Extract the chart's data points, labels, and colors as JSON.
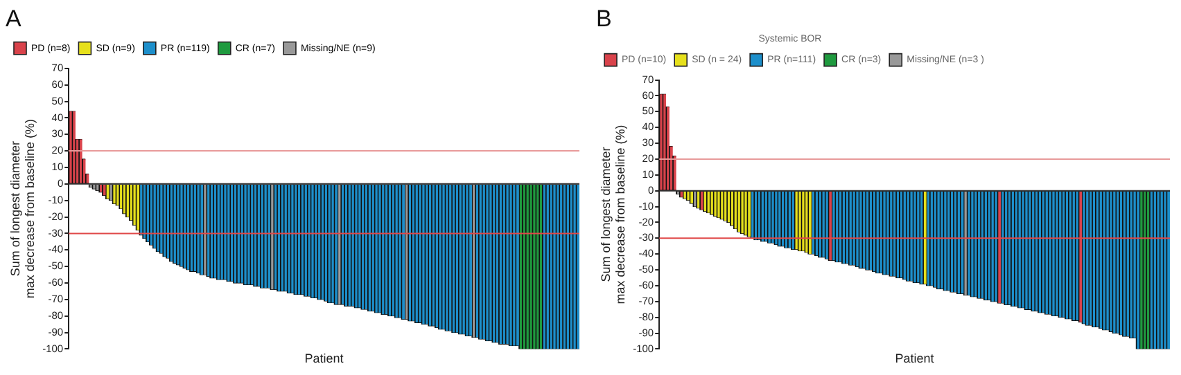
{
  "chart_data": [
    {
      "type": "bar",
      "title": "A",
      "xlabel": "Patient",
      "ylabel": "Sum of longest diameter\nmax decrease from baseline (%)",
      "stacked": true,
      "grid": false,
      "legend": "top",
      "ylim": [
        -100,
        70
      ],
      "yticks": [
        -100,
        -90,
        -80,
        -70,
        -60,
        -50,
        -40,
        -30,
        -20,
        -10,
        0,
        10,
        20,
        30,
        40,
        50,
        60,
        70
      ],
      "ref_lines": [
        {
          "axis": "y",
          "value": 20,
          "color": "#e89a9a"
        },
        {
          "axis": "y",
          "value": -30,
          "color": "#e04848"
        }
      ],
      "categories": [
        null,
        null,
        null,
        null,
        null,
        null,
        null,
        null,
        null,
        null,
        null,
        null,
        null,
        null,
        null,
        null,
        null,
        null,
        null,
        null,
        null,
        null,
        null,
        null,
        null,
        null,
        null,
        null,
        null,
        null,
        null,
        null,
        null,
        null,
        null,
        null,
        null,
        null,
        null,
        null,
        null,
        null,
        null,
        null,
        null,
        null,
        null,
        null,
        null,
        null,
        null,
        null,
        null,
        null,
        null,
        null,
        null,
        null,
        null,
        null,
        null,
        null,
        null,
        null,
        null,
        null,
        null,
        null,
        null,
        null,
        null,
        null,
        null,
        null,
        null,
        null,
        null,
        null,
        null,
        null,
        null,
        null,
        null,
        null,
        null,
        null,
        null,
        null,
        null,
        null,
        null,
        null,
        null,
        null,
        null,
        null,
        null,
        null,
        null,
        null,
        null,
        null,
        null,
        null,
        null,
        null,
        null,
        null,
        null,
        null,
        null,
        null,
        null,
        null,
        null,
        null,
        null,
        null,
        null,
        null,
        null,
        null,
        null,
        null,
        null,
        null,
        null,
        null,
        null,
        null,
        null,
        null,
        null,
        null,
        null,
        null,
        null,
        null,
        null,
        null,
        null,
        null,
        null,
        null,
        null,
        null,
        null,
        null,
        null,
        null,
        null,
        null
      ],
      "series": [
        {
          "name": "PD (n=8)",
          "color": "#d9434b",
          "values": [
            44,
            44,
            27,
            27,
            15,
            6,
            null,
            null,
            null,
            -5,
            -7,
            null,
            null,
            null,
            null,
            null,
            null,
            null,
            null,
            null,
            null,
            null,
            null,
            null,
            null,
            null,
            null,
            null,
            null,
            null,
            null,
            null,
            null,
            null,
            null,
            null,
            null,
            null,
            null,
            null,
            null,
            null,
            null,
            null,
            null,
            null,
            null,
            null,
            null,
            null,
            null,
            null,
            null,
            null,
            null,
            null,
            null,
            null,
            null,
            null,
            null,
            null,
            null,
            null,
            null,
            null,
            null,
            null,
            null,
            null,
            null,
            null,
            null,
            null,
            null,
            null,
            null,
            null,
            null,
            null,
            null,
            null,
            null,
            null,
            null,
            null,
            null,
            null,
            null,
            null,
            null,
            null,
            null,
            null,
            null,
            null,
            null,
            null,
            null,
            null,
            null,
            null,
            null,
            null,
            null,
            null,
            null,
            null,
            null,
            null,
            null,
            null,
            null,
            null,
            null,
            null,
            null,
            null,
            null,
            null,
            null,
            null,
            null,
            null,
            null,
            null,
            null,
            null,
            null,
            null,
            null,
            null,
            null,
            null,
            null,
            null,
            null,
            null,
            null,
            null,
            null,
            null,
            null,
            null,
            null,
            null,
            null,
            null,
            null,
            null,
            null,
            null
          ]
        },
        {
          "name": "SD (n=9)",
          "color": "#e6e01c",
          "values": [
            null,
            null,
            null,
            null,
            null,
            null,
            null,
            null,
            null,
            null,
            null,
            -9,
            null,
            -12,
            -13,
            -15,
            -18,
            -20,
            -22,
            -25,
            -28,
            null,
            null,
            null,
            null,
            null,
            null,
            null,
            null,
            null,
            null,
            null,
            null,
            null,
            null,
            null,
            null,
            null,
            null,
            null,
            null,
            null,
            null,
            null,
            null,
            null,
            null,
            null,
            null,
            null,
            null,
            null,
            null,
            null,
            null,
            null,
            null,
            null,
            null,
            null,
            null,
            null,
            null,
            null,
            null,
            null,
            null,
            null,
            null,
            null,
            null,
            null,
            null,
            null,
            null,
            null,
            null,
            null,
            null,
            null,
            null,
            null,
            null,
            null,
            null,
            null,
            null,
            null,
            null,
            null,
            null,
            null,
            null,
            null,
            null,
            null,
            null,
            null,
            null,
            null,
            null,
            null,
            null,
            null,
            null,
            null,
            null,
            null,
            null,
            null,
            null,
            null,
            null,
            null,
            null,
            null,
            null,
            null,
            null,
            null,
            null,
            null,
            null,
            null,
            null,
            null,
            null,
            null,
            null,
            null,
            null,
            null,
            null,
            null,
            null,
            null,
            null,
            null,
            null,
            null,
            null,
            null,
            null,
            null,
            null,
            null,
            null,
            null,
            null,
            null,
            null,
            null
          ]
        },
        {
          "name": "PR (n=119)",
          "color": "#1d8fcb",
          "values": [
            null,
            null,
            null,
            null,
            null,
            null,
            null,
            null,
            null,
            null,
            null,
            null,
            null,
            null,
            null,
            null,
            null,
            null,
            null,
            null,
            null,
            -31,
            -33,
            -35,
            -37,
            -39,
            -41,
            -42,
            -44,
            -45,
            -47,
            -48,
            -49,
            -50,
            -51,
            -52,
            -53,
            -53,
            -54,
            -55,
            null,
            -56,
            -57,
            -57,
            -58,
            -58,
            -58,
            -59,
            -59,
            -60,
            -60,
            -60,
            -61,
            -61,
            -61,
            -62,
            -62,
            -63,
            -63,
            -63,
            null,
            -64,
            -65,
            -65,
            -65,
            -66,
            -66,
            -67,
            -67,
            -67,
            -68,
            -68,
            -69,
            -69,
            -70,
            -70,
            -71,
            -72,
            -72,
            -73,
            null,
            -73,
            -74,
            -74,
            -74,
            -75,
            -75,
            -76,
            -76,
            -77,
            -77,
            -78,
            -78,
            -79,
            -79,
            -80,
            -80,
            -81,
            -81,
            -82,
            null,
            -83,
            -83,
            -84,
            -84,
            -85,
            -85,
            -86,
            -86,
            -87,
            -88,
            -88,
            -89,
            -89,
            -90,
            -90,
            -91,
            -91,
            -92,
            -92,
            null,
            -93,
            -94,
            -94,
            -95,
            -95,
            -96,
            -96,
            -97,
            -97,
            -97,
            -98,
            -98,
            -98,
            null,
            null,
            null,
            null,
            null,
            null,
            null,
            -100,
            -100,
            -100,
            -100,
            -100,
            -100,
            -100,
            -100,
            -100,
            -100,
            -100
          ]
        },
        {
          "name": "CR (n=7)",
          "color": "#1f9a3f",
          "values": [
            null,
            null,
            null,
            null,
            null,
            null,
            null,
            null,
            null,
            null,
            null,
            null,
            null,
            null,
            null,
            null,
            null,
            null,
            null,
            null,
            null,
            null,
            null,
            null,
            null,
            null,
            null,
            null,
            null,
            null,
            null,
            null,
            null,
            null,
            null,
            null,
            null,
            null,
            null,
            null,
            null,
            null,
            null,
            null,
            null,
            null,
            null,
            null,
            null,
            null,
            null,
            null,
            null,
            null,
            null,
            null,
            null,
            null,
            null,
            null,
            null,
            null,
            null,
            null,
            null,
            null,
            null,
            null,
            null,
            null,
            null,
            null,
            null,
            null,
            null,
            null,
            null,
            null,
            null,
            null,
            null,
            null,
            null,
            null,
            null,
            null,
            null,
            null,
            null,
            null,
            null,
            null,
            null,
            null,
            null,
            null,
            null,
            null,
            null,
            null,
            null,
            null,
            null,
            null,
            null,
            null,
            null,
            null,
            null,
            null,
            null,
            null,
            null,
            null,
            null,
            null,
            null,
            null,
            null,
            null,
            null,
            null,
            null,
            null,
            null,
            null,
            null,
            null,
            null,
            null,
            null,
            null,
            null,
            null,
            -100,
            -100,
            -100,
            -100,
            -100,
            -100,
            -100,
            null,
            null,
            null,
            null,
            null,
            null,
            null,
            null,
            null,
            null,
            null
          ]
        },
        {
          "name": "Missing/NE (n=9)",
          "color": "#999999",
          "values": [
            null,
            null,
            null,
            null,
            null,
            null,
            -2,
            -3,
            -4,
            null,
            null,
            null,
            -10,
            null,
            null,
            null,
            null,
            null,
            null,
            null,
            null,
            null,
            null,
            null,
            null,
            null,
            null,
            null,
            null,
            null,
            null,
            null,
            null,
            null,
            null,
            null,
            null,
            null,
            null,
            null,
            -55,
            null,
            null,
            null,
            null,
            null,
            null,
            null,
            null,
            null,
            null,
            null,
            null,
            null,
            null,
            null,
            null,
            null,
            null,
            null,
            -64,
            null,
            null,
            null,
            null,
            null,
            null,
            null,
            null,
            null,
            null,
            null,
            null,
            null,
            null,
            null,
            null,
            null,
            null,
            null,
            -73,
            null,
            null,
            null,
            null,
            null,
            null,
            null,
            null,
            null,
            null,
            null,
            null,
            null,
            null,
            null,
            null,
            null,
            null,
            null,
            -82,
            null,
            null,
            null,
            null,
            null,
            null,
            null,
            null,
            null,
            null,
            null,
            null,
            null,
            null,
            null,
            null,
            null,
            null,
            null,
            -93,
            null,
            null,
            null,
            null,
            null,
            null,
            null,
            null,
            null,
            null,
            null,
            null,
            null,
            null,
            null,
            null,
            null,
            null,
            null,
            null,
            null,
            null,
            null,
            null,
            null,
            null,
            null,
            null,
            null,
            null,
            null
          ]
        }
      ]
    },
    {
      "type": "bar",
      "title": "B",
      "xlabel": "Patient",
      "ylabel": "Sum of longest diameter\nmax decrease from baseline (%)",
      "stacked": true,
      "grid": false,
      "legend": "top",
      "legend_title": "Systemic BOR",
      "ylim": [
        -100,
        70
      ],
      "yticks": [
        -100,
        -90,
        -80,
        -70,
        -60,
        -50,
        -40,
        -30,
        -20,
        -10,
        0,
        10,
        20,
        30,
        40,
        50,
        60,
        70
      ],
      "ref_lines": [
        {
          "axis": "y",
          "value": 20,
          "color": "#e89a9a"
        },
        {
          "axis": "y",
          "value": -30,
          "color": "#e04848"
        }
      ],
      "categories": [
        null,
        null,
        null,
        null,
        null,
        null,
        null,
        null,
        null,
        null,
        null,
        null,
        null,
        null,
        null,
        null,
        null,
        null,
        null,
        null,
        null,
        null,
        null,
        null,
        null,
        null,
        null,
        null,
        null,
        null,
        null,
        null,
        null,
        null,
        null,
        null,
        null,
        null,
        null,
        null,
        null,
        null,
        null,
        null,
        null,
        null,
        null,
        null,
        null,
        null,
        null,
        null,
        null,
        null,
        null,
        null,
        null,
        null,
        null,
        null,
        null,
        null,
        null,
        null,
        null,
        null,
        null,
        null,
        null,
        null,
        null,
        null,
        null,
        null,
        null,
        null,
        null,
        null,
        null,
        null,
        null,
        null,
        null,
        null,
        null,
        null,
        null,
        null,
        null,
        null,
        null,
        null,
        null,
        null,
        null,
        null,
        null,
        null,
        null,
        null,
        null,
        null,
        null,
        null,
        null,
        null,
        null,
        null,
        null,
        null,
        null,
        null,
        null,
        null,
        null,
        null,
        null,
        null,
        null,
        null,
        null,
        null,
        null,
        null,
        null,
        null,
        null,
        null,
        null,
        null,
        null,
        null,
        null,
        null,
        null,
        null,
        null,
        null,
        null,
        null,
        null,
        null,
        null,
        null,
        null,
        null,
        null,
        null,
        null,
        null,
        null
      ],
      "series": [
        {
          "name": "PD (n=10)",
          "color": "#d9434b",
          "values": [
            61,
            61,
            53,
            28,
            22,
            null,
            -4,
            null,
            null,
            null,
            null,
            null,
            -12,
            null,
            null,
            null,
            null,
            null,
            null,
            null,
            null,
            null,
            null,
            null,
            null,
            null,
            null,
            null,
            null,
            null,
            null,
            null,
            null,
            null,
            null,
            null,
            null,
            null,
            null,
            null,
            null,
            null,
            null,
            null,
            null,
            null,
            null,
            null,
            null,
            null,
            -44,
            null,
            null,
            null,
            null,
            null,
            null,
            null,
            null,
            null,
            null,
            null,
            null,
            null,
            null,
            null,
            null,
            null,
            null,
            null,
            null,
            null,
            null,
            null,
            null,
            null,
            null,
            null,
            null,
            null,
            null,
            null,
            null,
            null,
            null,
            null,
            null,
            null,
            null,
            null,
            null,
            null,
            null,
            null,
            null,
            null,
            null,
            null,
            null,
            null,
            -71,
            null,
            null,
            null,
            null,
            null,
            null,
            null,
            null,
            null,
            null,
            null,
            null,
            null,
            null,
            null,
            null,
            null,
            null,
            null,
            null,
            null,
            null,
            null,
            -83,
            null,
            null,
            null,
            null,
            null,
            null,
            null,
            null,
            null,
            null,
            null,
            null,
            null,
            null,
            null,
            null,
            null,
            null,
            null,
            null,
            null,
            null,
            null,
            null,
            null,
            null
          ]
        },
        {
          "name": "SD (n = 24)",
          "color": "#e6e01c",
          "values": [
            null,
            null,
            null,
            null,
            null,
            null,
            null,
            -5,
            -6,
            -8,
            null,
            -11,
            null,
            -13,
            -14,
            -15,
            -16,
            -17,
            -18,
            -19,
            -20,
            -22,
            -24,
            -26,
            -27,
            -28,
            -29,
            null,
            null,
            null,
            null,
            null,
            null,
            null,
            null,
            null,
            null,
            null,
            null,
            null,
            -37,
            -38,
            -38,
            -39,
            -40,
            null,
            null,
            null,
            null,
            null,
            null,
            null,
            null,
            null,
            null,
            null,
            null,
            null,
            null,
            null,
            null,
            null,
            null,
            null,
            null,
            null,
            null,
            null,
            null,
            null,
            null,
            null,
            null,
            null,
            null,
            null,
            null,
            null,
            -59,
            null,
            null,
            null,
            null,
            null,
            null,
            null,
            null,
            null,
            null,
            null,
            null,
            null,
            null,
            null,
            null,
            null,
            null,
            null,
            null,
            null,
            null,
            null,
            null,
            null,
            null,
            null,
            null,
            null,
            null,
            null,
            null,
            null,
            null,
            null,
            null,
            null,
            null,
            null,
            null,
            null,
            null,
            null,
            null,
            null,
            null,
            null,
            null,
            null,
            null,
            null,
            null,
            null,
            null,
            null,
            null,
            null,
            null,
            null,
            null,
            null,
            null,
            null,
            null,
            null,
            null,
            null,
            null,
            null,
            null,
            null,
            null
          ]
        },
        {
          "name": "PR (n=111)",
          "color": "#1d8fcb",
          "values": [
            null,
            null,
            null,
            null,
            null,
            null,
            null,
            null,
            null,
            null,
            null,
            null,
            null,
            null,
            null,
            null,
            null,
            null,
            null,
            null,
            null,
            null,
            null,
            null,
            null,
            null,
            null,
            -30,
            -31,
            -31,
            -32,
            -32,
            -33,
            -33,
            -34,
            -35,
            -35,
            -36,
            -36,
            -37,
            null,
            null,
            null,
            null,
            null,
            -40,
            -41,
            -42,
            -42,
            -43,
            null,
            -44,
            -45,
            -45,
            -46,
            -46,
            -47,
            -47,
            -48,
            -49,
            -49,
            -50,
            -50,
            -51,
            -52,
            -52,
            -53,
            -53,
            -54,
            -54,
            -55,
            -55,
            -56,
            -57,
            -57,
            -58,
            -58,
            -59,
            null,
            -60,
            -60,
            -61,
            -62,
            -62,
            -63,
            -63,
            -64,
            -64,
            -65,
            -65,
            null,
            -66,
            -67,
            -67,
            -68,
            -68,
            -69,
            -69,
            -70,
            -70,
            null,
            -71,
            -72,
            -72,
            -73,
            -73,
            -74,
            -74,
            -75,
            -75,
            -76,
            -76,
            -77,
            -77,
            -78,
            -78,
            -79,
            -79,
            -80,
            -80,
            -81,
            -81,
            -82,
            -82,
            null,
            -84,
            -85,
            -85,
            -86,
            -86,
            -87,
            -88,
            -88,
            -89,
            -90,
            -90,
            -91,
            -92,
            -92,
            -93,
            -93,
            -100,
            null,
            null,
            null,
            -100,
            -100,
            -100,
            -100,
            -100,
            -100
          ]
        },
        {
          "name": "CR (n=3)",
          "color": "#1f9a3f",
          "values": [
            null,
            null,
            null,
            null,
            null,
            null,
            null,
            null,
            null,
            null,
            null,
            null,
            null,
            null,
            null,
            null,
            null,
            null,
            null,
            null,
            null,
            null,
            null,
            null,
            null,
            null,
            null,
            null,
            null,
            null,
            null,
            null,
            null,
            null,
            null,
            null,
            null,
            null,
            null,
            null,
            null,
            null,
            null,
            null,
            null,
            null,
            null,
            null,
            null,
            null,
            null,
            null,
            null,
            null,
            null,
            null,
            null,
            null,
            null,
            null,
            null,
            null,
            null,
            null,
            null,
            null,
            null,
            null,
            null,
            null,
            null,
            null,
            null,
            null,
            null,
            null,
            null,
            null,
            null,
            null,
            null,
            null,
            null,
            null,
            null,
            null,
            null,
            null,
            null,
            null,
            null,
            null,
            null,
            null,
            null,
            null,
            null,
            null,
            null,
            null,
            null,
            null,
            null,
            null,
            null,
            null,
            null,
            null,
            null,
            null,
            null,
            null,
            null,
            null,
            null,
            null,
            null,
            null,
            null,
            null,
            null,
            null,
            null,
            null,
            null,
            null,
            null,
            null,
            null,
            null,
            null,
            null,
            null,
            null,
            null,
            null,
            null,
            null,
            null,
            null,
            null,
            null,
            -100,
            -100,
            -100,
            null,
            null,
            null,
            null,
            null,
            null
          ]
        },
        {
          "name": "Missing/NE (n=3 )",
          "color": "#999999",
          "values": [
            null,
            null,
            null,
            null,
            null,
            -2,
            null,
            null,
            null,
            null,
            -10,
            null,
            null,
            null,
            null,
            null,
            null,
            null,
            null,
            null,
            null,
            null,
            null,
            null,
            null,
            null,
            null,
            null,
            null,
            null,
            null,
            null,
            null,
            null,
            null,
            null,
            null,
            null,
            null,
            null,
            null,
            null,
            null,
            null,
            null,
            null,
            null,
            null,
            null,
            null,
            null,
            null,
            null,
            null,
            null,
            null,
            null,
            null,
            null,
            null,
            null,
            null,
            null,
            null,
            null,
            null,
            null,
            null,
            null,
            null,
            null,
            null,
            null,
            null,
            null,
            null,
            null,
            null,
            null,
            null,
            null,
            null,
            null,
            null,
            null,
            null,
            null,
            null,
            null,
            null,
            -66,
            null,
            null,
            null,
            null,
            null,
            null,
            null,
            null,
            null,
            null,
            null,
            null,
            null,
            null,
            null,
            null,
            null,
            null,
            null,
            null,
            null,
            null,
            null,
            null,
            null,
            null,
            null,
            null,
            null,
            null,
            null,
            null,
            null,
            null,
            null,
            null,
            null,
            null,
            null,
            null,
            null,
            null,
            null,
            null,
            null,
            null,
            null,
            null,
            null,
            null,
            null,
            null,
            null,
            null,
            null,
            null,
            null,
            null,
            null,
            null
          ]
        }
      ]
    }
  ]
}
